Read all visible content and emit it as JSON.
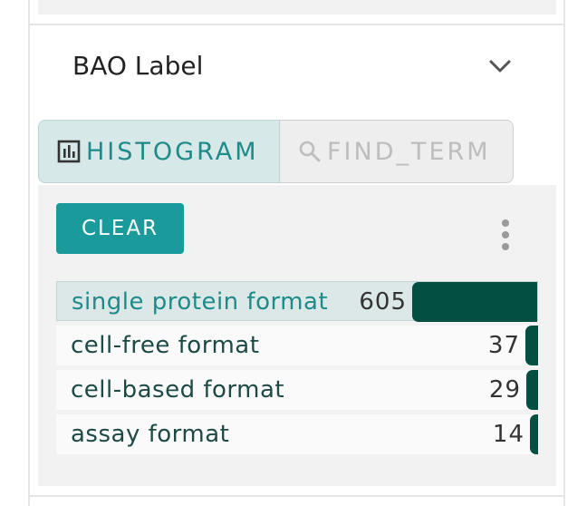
{
  "section": {
    "title": "BAO Label",
    "collapse_icon": "chevron-down-icon"
  },
  "tabs": [
    {
      "label": "HISTOGRAM",
      "icon": "bar-chart-icon",
      "active": true
    },
    {
      "label": "FIND_TERM",
      "icon": "search-icon",
      "active": false
    }
  ],
  "actions": {
    "clear_label": "CLEAR",
    "more_icon": "more-vert-icon"
  },
  "histogram": {
    "items": [
      {
        "label": "single protein format",
        "count": "605",
        "value": 605,
        "selected": true
      },
      {
        "label": "cell-free format",
        "count": "37",
        "value": 37,
        "selected": false
      },
      {
        "label": "cell-based format",
        "count": "29",
        "value": 29,
        "selected": false
      },
      {
        "label": "assay format",
        "count": "14",
        "value": 14,
        "selected": false
      }
    ]
  },
  "colors": {
    "accent": "#1a9a9a",
    "bar": "#034f42",
    "selected_row": "#dce8e7",
    "tab_active_bg": "#d7e8e8"
  }
}
